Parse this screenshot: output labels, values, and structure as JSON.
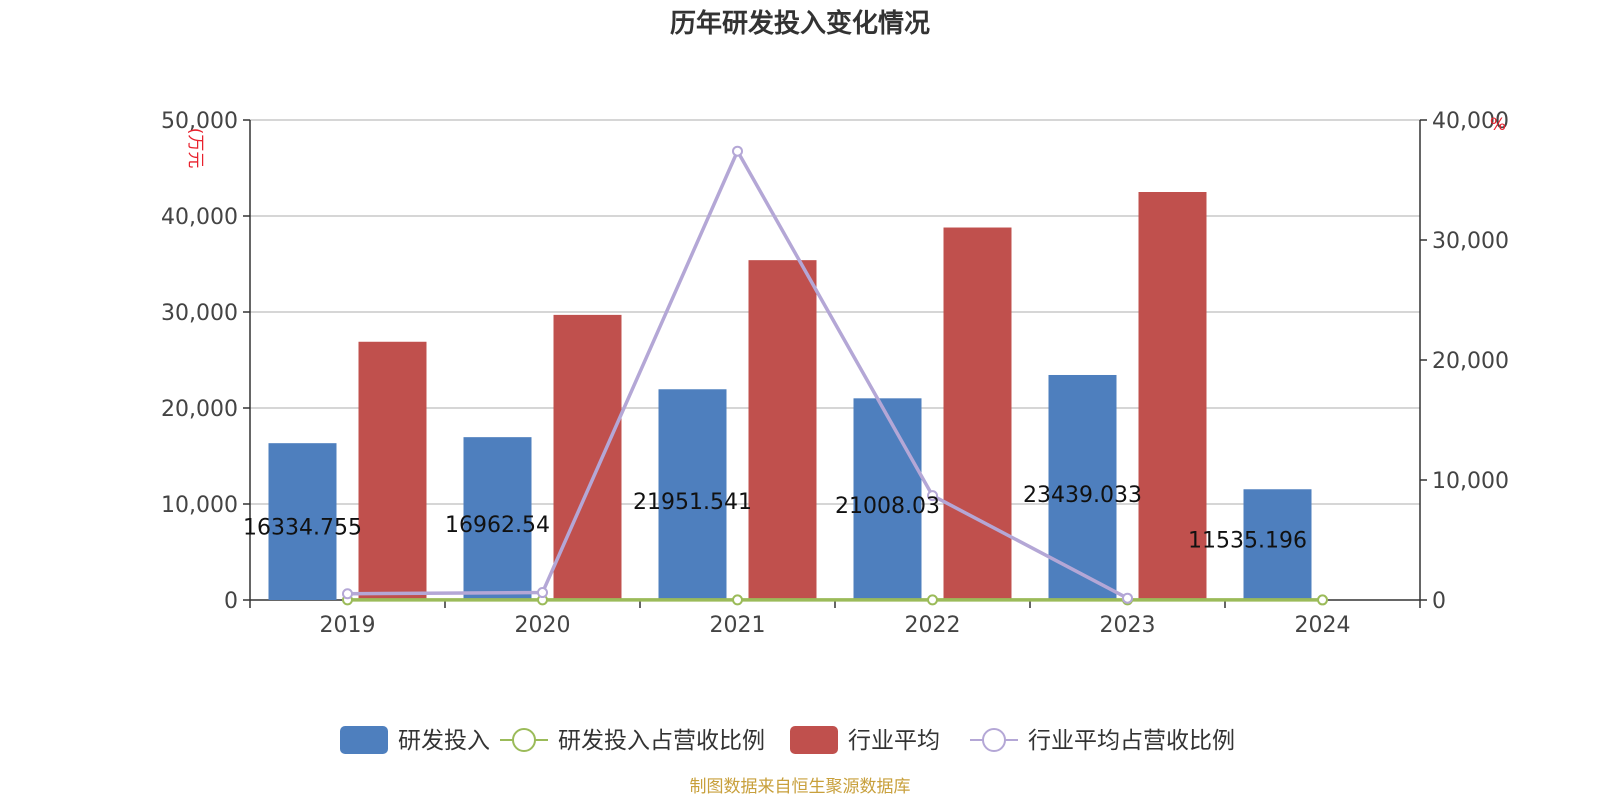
{
  "source_note": "制图数据来自恒生聚源数据库",
  "chart_data": {
    "type": "bar",
    "title": "历年研发投入变化情况",
    "categories": [
      "2019",
      "2020",
      "2021",
      "2022",
      "2023",
      "2024"
    ],
    "y_left": {
      "unit_label": "(万元",
      "range": [
        0,
        50000
      ],
      "ticks": [
        0,
        10000,
        20000,
        30000,
        40000,
        50000
      ],
      "tick_labels": [
        "0",
        "10,000",
        "20,000",
        "30,000",
        "40,000",
        "50,000"
      ]
    },
    "y_right": {
      "unit_label": "%",
      "range": [
        0,
        40000
      ],
      "ticks": [
        0,
        10000,
        20000,
        30000,
        40000
      ],
      "tick_labels": [
        "0",
        "10,000",
        "20,000",
        "30,000",
        "40,000"
      ]
    },
    "grid": true,
    "legend_position": "bottom",
    "series": [
      {
        "name": "研发投入",
        "type": "bar",
        "axis": "left",
        "color": "#4e7fbe",
        "values": [
          16334.755,
          16962.54,
          21951.541,
          21008.03,
          23439.033,
          11535.196
        ],
        "data_labels": [
          "16334.755",
          "16962.54",
          "21951.541",
          "21008.03",
          "23439.033",
          "11535.196"
        ]
      },
      {
        "name": "研发投入占营收比例",
        "type": "line",
        "axis": "right",
        "color": "#9bbb59",
        "values": [
          7.5,
          8.1,
          8.9,
          9.4,
          11.2,
          5.6
        ]
      },
      {
        "name": "行业平均",
        "type": "bar",
        "axis": "left",
        "color": "#c0504d",
        "values": [
          26900,
          29700,
          35400,
          38800,
          42500,
          null
        ]
      },
      {
        "name": "行业平均占营收比例",
        "type": "line",
        "axis": "right",
        "color": "#b4a7d6",
        "values": [
          520,
          620,
          37400,
          8700,
          150,
          null
        ]
      }
    ]
  }
}
